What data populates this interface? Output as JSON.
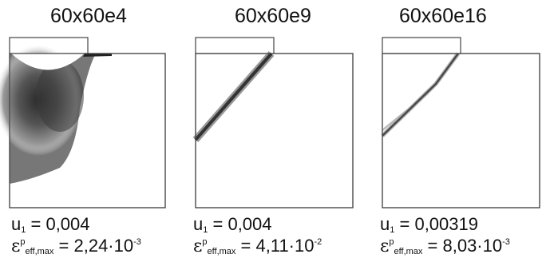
{
  "panels": [
    {
      "title": "60x60e4",
      "disp_label": "u",
      "disp_sub": "1",
      "disp_value": "= 0,004",
      "strain_symbol": "ε",
      "strain_sup": "p",
      "strain_sub": "eff,max",
      "strain_mantissa": "= 2,24·10",
      "strain_exp": "-3"
    },
    {
      "title": "60x60e9",
      "disp_label": "u",
      "disp_sub": "1",
      "disp_value": "= 0,004",
      "strain_symbol": "ε",
      "strain_sup": "p",
      "strain_sub": "eff,max",
      "strain_mantissa": "= 4,11·10",
      "strain_exp": "-2"
    },
    {
      "title": "60x60e16",
      "disp_label": "u",
      "disp_sub": "1",
      "disp_value": "= 0,00319",
      "strain_symbol": "ε",
      "strain_sup": "p",
      "strain_sub": "eff,max",
      "strain_mantissa": "= 8,03·10",
      "strain_exp": "-3"
    }
  ],
  "colors": {
    "outline": "#444444",
    "band": "#3a3a3a",
    "background": "#ffffff"
  }
}
